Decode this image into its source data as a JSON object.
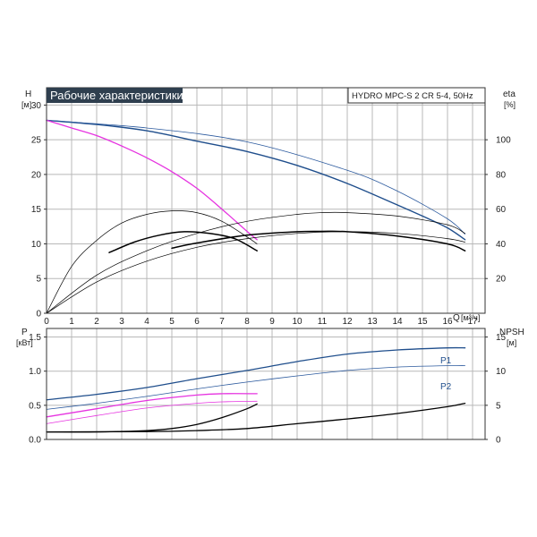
{
  "title": "Рабочие характеристики",
  "model": "HYDRO MPC-S 2 CR 5-4, 50Hz",
  "colors": {
    "dark_blue": "#1f4e8c",
    "thin_blue": "#2c5a9e",
    "magenta": "#e633e0",
    "black": "#000000",
    "grid": "#b8b8b8",
    "title_bg": "#2f3f4f"
  },
  "chart_data": [
    {
      "name": "top",
      "type": "line",
      "x_axis": {
        "label": "Q",
        "unit": "[м³/ч]",
        "range": [
          0,
          17.5
        ],
        "ticks": [
          0,
          1,
          2,
          3,
          4,
          5,
          6,
          7,
          8,
          9,
          10,
          11,
          12,
          13,
          14,
          15,
          16,
          17
        ]
      },
      "y_axis_left": {
        "label": "H",
        "unit": "[м]",
        "range": [
          0,
          32.5
        ],
        "ticks": [
          0,
          5,
          10,
          15,
          20,
          25,
          30
        ]
      },
      "y_axis_right": {
        "label": "eta",
        "unit": "[%]",
        "range": [
          0,
          130
        ],
        "ticks": [
          20,
          40,
          60,
          80,
          100
        ]
      },
      "grid": true,
      "series": [
        {
          "axis": "left",
          "color": "#1f4e8c",
          "width": 1.4,
          "points": [
            [
              0,
              27.8
            ],
            [
              2,
              27.2
            ],
            [
              4,
              26.3
            ],
            [
              6,
              24.8
            ],
            [
              8,
              23.3
            ],
            [
              10,
              21.3
            ],
            [
              12,
              18.7
            ],
            [
              14,
              15.6
            ],
            [
              15,
              14.0
            ],
            [
              16,
              12.3
            ],
            [
              16.7,
              10.6
            ]
          ]
        },
        {
          "axis": "left",
          "color": "#2c5a9e",
          "width": 0.8,
          "points": [
            [
              0,
              27.8
            ],
            [
              4,
              26.7
            ],
            [
              8,
              24.7
            ],
            [
              12,
              20.6
            ],
            [
              14,
              17.6
            ],
            [
              16,
              13.6
            ],
            [
              16.7,
              11.4
            ]
          ]
        },
        {
          "axis": "left",
          "color": "#e633e0",
          "width": 1.3,
          "points": [
            [
              0,
              27.8
            ],
            [
              1,
              26.7
            ],
            [
              2,
              25.6
            ],
            [
              3,
              24.1
            ],
            [
              4,
              22.4
            ],
            [
              5,
              20.4
            ],
            [
              6,
              18.0
            ],
            [
              7,
              15.0
            ],
            [
              8,
              11.8
            ],
            [
              8.4,
              10.6
            ]
          ]
        },
        {
          "axis": "right",
          "color": "#000000",
          "width": 0.7,
          "points": [
            [
              0,
              0
            ],
            [
              1,
              27
            ],
            [
              2,
              42
            ],
            [
              3,
              52
            ],
            [
              4,
              57
            ],
            [
              5,
              59
            ],
            [
              6,
              58
            ],
            [
              7,
              53
            ],
            [
              8,
              44
            ],
            [
              8.4,
              40
            ]
          ]
        },
        {
          "axis": "right",
          "color": "#000000",
          "width": 1.5,
          "points": [
            [
              2.5,
              35
            ],
            [
              3.5,
              41
            ],
            [
              4.5,
              45
            ],
            [
              5.5,
              47
            ],
            [
              6.5,
              46
            ],
            [
              7.5,
              43
            ],
            [
              8.4,
              36
            ]
          ]
        },
        {
          "axis": "right",
          "color": "#000000",
          "width": 0.7,
          "points": [
            [
              0,
              0
            ],
            [
              2,
              22
            ],
            [
              4,
              36
            ],
            [
              6,
              46
            ],
            [
              8,
              53
            ],
            [
              10,
              57
            ],
            [
              11,
              58
            ],
            [
              12,
              58
            ],
            [
              14,
              56
            ],
            [
              16,
              51
            ],
            [
              16.7,
              46
            ]
          ]
        },
        {
          "axis": "right",
          "color": "#000000",
          "width": 0.7,
          "points": [
            [
              0,
              0
            ],
            [
              2,
              18
            ],
            [
              4,
              30
            ],
            [
              6,
              38
            ],
            [
              8,
              43
            ],
            [
              10,
              46
            ],
            [
              12,
              47
            ],
            [
              14,
              46
            ],
            [
              16,
              43
            ],
            [
              16.7,
              41
            ]
          ]
        },
        {
          "axis": "right",
          "color": "#000000",
          "width": 1.5,
          "points": [
            [
              5,
              37.5
            ],
            [
              6,
              40.5
            ],
            [
              8,
              45
            ],
            [
              10,
              47
            ],
            [
              11,
              47.2
            ],
            [
              12,
              47
            ],
            [
              14,
              44.5
            ],
            [
              16,
              40
            ],
            [
              16.7,
              36
            ]
          ]
        }
      ]
    },
    {
      "name": "bottom",
      "type": "line",
      "x_axis": {
        "range": [
          0,
          17.5
        ]
      },
      "y_axis_left": {
        "label": "P",
        "unit": "[кВт]",
        "range": [
          0,
          1.625
        ],
        "ticks": [
          "0.0",
          "0.5",
          "1.0",
          "1.5"
        ],
        "tick_values": [
          0,
          0.5,
          1.0,
          1.5
        ]
      },
      "y_axis_right": {
        "label": "NPSH",
        "unit": "[м]",
        "range": [
          0,
          16.25
        ],
        "ticks": [
          0,
          5,
          10,
          15
        ]
      },
      "grid": true,
      "curve_labels": [
        "P1",
        "P2"
      ],
      "series": [
        {
          "axis": "left",
          "color": "#1f4e8c",
          "width": 1.3,
          "label": "P1",
          "points": [
            [
              0,
              0.58
            ],
            [
              2,
              0.66
            ],
            [
              4,
              0.76
            ],
            [
              6,
              0.89
            ],
            [
              8,
              1.01
            ],
            [
              10,
              1.14
            ],
            [
              12,
              1.25
            ],
            [
              14,
              1.31
            ],
            [
              16,
              1.34
            ],
            [
              16.7,
              1.34
            ]
          ]
        },
        {
          "axis": "left",
          "color": "#2c5a9e",
          "width": 0.8,
          "label": "P2",
          "points": [
            [
              0,
              0.44
            ],
            [
              2,
              0.53
            ],
            [
              4,
              0.63
            ],
            [
              6,
              0.74
            ],
            [
              8,
              0.84
            ],
            [
              10,
              0.93
            ],
            [
              12,
              1.01
            ],
            [
              14,
              1.06
            ],
            [
              16,
              1.08
            ],
            [
              16.7,
              1.08
            ]
          ]
        },
        {
          "axis": "left",
          "color": "#e633e0",
          "width": 1.3,
          "points": [
            [
              0,
              0.33
            ],
            [
              2,
              0.45
            ],
            [
              4,
              0.57
            ],
            [
              6,
              0.65
            ],
            [
              7,
              0.67
            ],
            [
              8.4,
              0.67
            ]
          ]
        },
        {
          "axis": "left",
          "color": "#e633e0",
          "width": 0.8,
          "points": [
            [
              0,
              0.23
            ],
            [
              2,
              0.35
            ],
            [
              4,
              0.46
            ],
            [
              6,
              0.53
            ],
            [
              7,
              0.55
            ],
            [
              8.4,
              0.56
            ]
          ]
        },
        {
          "axis": "right",
          "color": "#000000",
          "width": 1.3,
          "points": [
            [
              0,
              1.1
            ],
            [
              2,
              1.1
            ],
            [
              4,
              1.3
            ],
            [
              5,
              1.6
            ],
            [
              6,
              2.2
            ],
            [
              7,
              3.2
            ],
            [
              8,
              4.5
            ],
            [
              8.4,
              5.2
            ]
          ]
        },
        {
          "axis": "right",
          "color": "#000000",
          "width": 1.3,
          "points": [
            [
              0,
              1.1
            ],
            [
              4,
              1.15
            ],
            [
              6,
              1.3
            ],
            [
              8,
              1.6
            ],
            [
              10,
              2.3
            ],
            [
              12,
              3.0
            ],
            [
              14,
              3.8
            ],
            [
              16,
              4.8
            ],
            [
              16.7,
              5.3
            ]
          ]
        }
      ]
    }
  ]
}
